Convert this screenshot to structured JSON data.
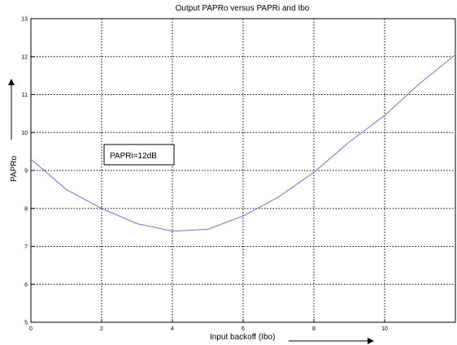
{
  "chart_data": {
    "type": "line",
    "title": "Output PAPRo versus PAPRi and Ibo",
    "xlabel": "Input backoff (Ibo)",
    "ylabel": "PAPRo",
    "xlim": [
      0,
      12
    ],
    "ylim": [
      5,
      13
    ],
    "x_ticks": [
      "0",
      "2",
      "4",
      "6",
      "8",
      "10"
    ],
    "y_ticks": [
      "5",
      "6",
      "7",
      "8",
      "9",
      "10",
      "11",
      "12",
      "13"
    ],
    "grid": true,
    "annotation": "PAPRi=12dB",
    "series": [
      {
        "color": "#6e6ee6",
        "x": [
          0,
          0.5,
          1,
          2,
          3,
          4,
          5,
          6,
          7,
          8,
          9,
          10,
          11,
          12
        ],
        "y": [
          9.3,
          8.9,
          8.5,
          8.0,
          7.6,
          7.4,
          7.45,
          7.8,
          8.3,
          8.95,
          9.75,
          10.45,
          11.3,
          12.05
        ]
      }
    ]
  }
}
